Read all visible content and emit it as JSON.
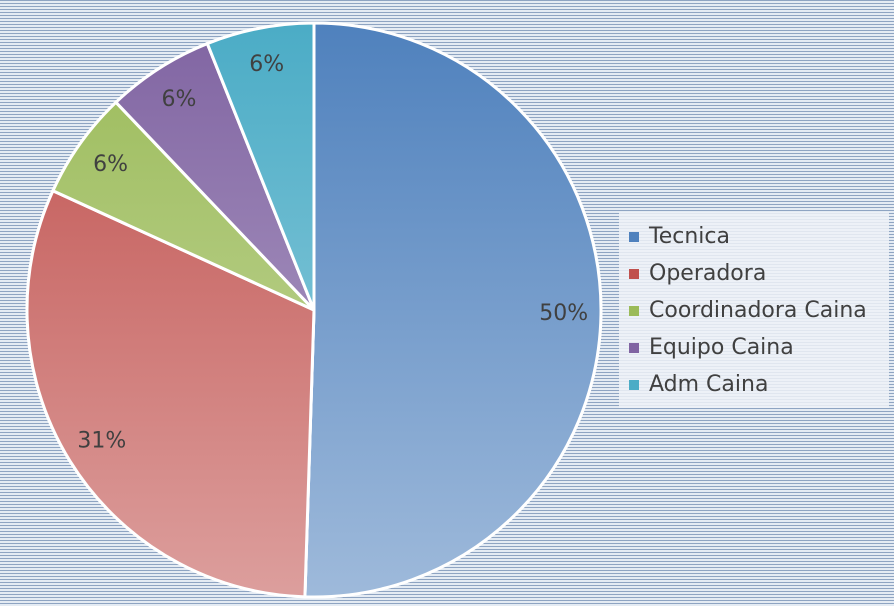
{
  "chart_data": {
    "type": "pie",
    "categories": [
      "Tecnica",
      "Operadora",
      "Coordinadora Caina",
      "Equipo Caina",
      "Adm Caina"
    ],
    "values": [
      50,
      31,
      6,
      6,
      6
    ],
    "value_labels": [
      "50%",
      "31%",
      "6%",
      "6%",
      "6%"
    ],
    "colors": [
      "#4f81bd",
      "#c0504d",
      "#9bbb59",
      "#8064a2",
      "#4bacc6"
    ],
    "legend": "right"
  }
}
